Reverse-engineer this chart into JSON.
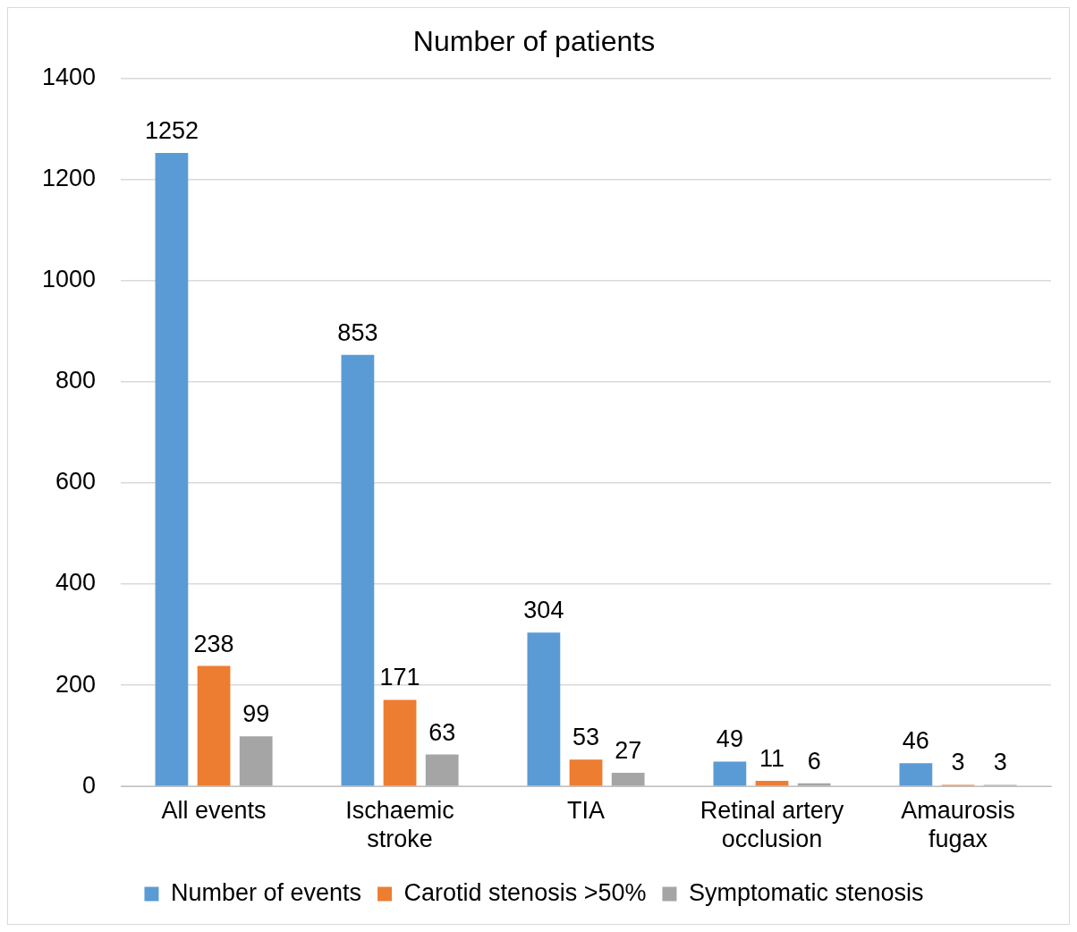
{
  "chart_data": {
    "type": "bar",
    "title": "Number of patients",
    "categories": [
      "All events",
      "Ischaemic stroke",
      "TIA",
      "Retinal artery occlusion",
      "Amaurosis fugax"
    ],
    "series": [
      {
        "name": "Number of events",
        "color": "#5b9bd5",
        "values": [
          1252,
          853,
          304,
          49,
          46
        ]
      },
      {
        "name": "Carotid stenosis >50%",
        "color": "#ed7d31",
        "values": [
          238,
          171,
          53,
          11,
          3
        ]
      },
      {
        "name": "Symptomatic stenosis",
        "color": "#a5a5a5",
        "values": [
          99,
          63,
          27,
          6,
          3
        ]
      }
    ],
    "ylim": [
      0,
      1400
    ],
    "yticks": [
      0,
      200,
      400,
      600,
      800,
      1000,
      1200,
      1400
    ],
    "grid": "y",
    "legend": "bottom",
    "data_labels": true
  }
}
